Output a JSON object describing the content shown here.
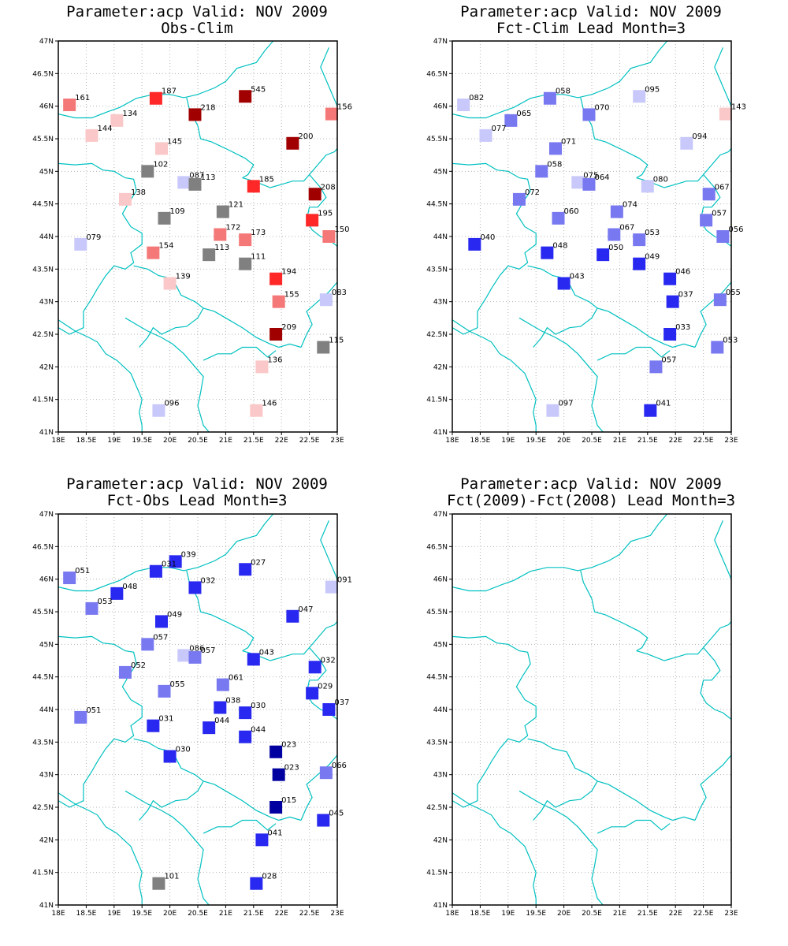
{
  "axis": {
    "lon_range": [
      18,
      23
    ],
    "lat_range": [
      41,
      47
    ],
    "lon_ticks": [
      "18E",
      "18.5E",
      "19E",
      "19.5E",
      "20E",
      "20.5E",
      "21E",
      "21.5E",
      "22E",
      "22.5E",
      "23E"
    ],
    "lat_ticks": [
      "41N",
      "41.5N",
      "42N",
      "42.5N",
      "43N",
      "43.5N",
      "44N",
      "44.5N",
      "45N",
      "45.5N",
      "46N",
      "46.5N",
      "47N"
    ],
    "grid": true,
    "grid_style": "dotted"
  },
  "colors": {
    "border_line": "#00c0c0",
    "grid_line": "#b4b4b4",
    "frame": "#000000",
    "dark_red": "#a00000",
    "red": "#ff2828",
    "light_red": "#f57878",
    "pale_red": "#fac8c8",
    "gray": "#808080",
    "pale_blue": "#c8c8fa",
    "light_blue": "#7878f0",
    "blue": "#2828f0",
    "dark_blue": "#0000a0"
  },
  "panels": [
    {
      "title_line1": "Parameter:acp Valid: NOV 2009",
      "title_line2": "Obs-Clim",
      "stations": [
        {
          "lon": 18.2,
          "lat": 46.02,
          "label": "161",
          "color": "light_red"
        },
        {
          "lon": 19.75,
          "lat": 46.12,
          "label": "187",
          "color": "red"
        },
        {
          "lon": 21.35,
          "lat": 46.15,
          "label": "545",
          "color": "dark_red"
        },
        {
          "lon": 22.9,
          "lat": 45.88,
          "label": "156",
          "color": "light_red"
        },
        {
          "lon": 19.05,
          "lat": 45.78,
          "label": "134",
          "color": "pale_red"
        },
        {
          "lon": 20.45,
          "lat": 45.87,
          "label": "218",
          "color": "dark_red"
        },
        {
          "lon": 18.6,
          "lat": 45.55,
          "label": "144",
          "color": "pale_red"
        },
        {
          "lon": 22.2,
          "lat": 45.43,
          "label": "200",
          "color": "dark_red"
        },
        {
          "lon": 19.85,
          "lat": 45.35,
          "label": "145",
          "color": "pale_red"
        },
        {
          "lon": 19.6,
          "lat": 45.0,
          "label": "102",
          "color": "gray"
        },
        {
          "lon": 20.25,
          "lat": 44.83,
          "label": "087",
          "color": "pale_blue"
        },
        {
          "lon": 20.45,
          "lat": 44.8,
          "label": "113",
          "color": "gray"
        },
        {
          "lon": 21.5,
          "lat": 44.77,
          "label": "185",
          "color": "red"
        },
        {
          "lon": 22.6,
          "lat": 44.65,
          "label": "208",
          "color": "dark_red"
        },
        {
          "lon": 19.2,
          "lat": 44.57,
          "label": "138",
          "color": "pale_red"
        },
        {
          "lon": 20.95,
          "lat": 44.38,
          "label": "121",
          "color": "gray"
        },
        {
          "lon": 19.9,
          "lat": 44.28,
          "label": "109",
          "color": "gray"
        },
        {
          "lon": 22.55,
          "lat": 44.25,
          "label": "195",
          "color": "red"
        },
        {
          "lon": 20.9,
          "lat": 44.03,
          "label": "172",
          "color": "light_red"
        },
        {
          "lon": 22.85,
          "lat": 44.0,
          "label": "150",
          "color": "light_red"
        },
        {
          "lon": 21.35,
          "lat": 43.95,
          "label": "173",
          "color": "light_red"
        },
        {
          "lon": 18.4,
          "lat": 43.88,
          "label": "079",
          "color": "pale_blue"
        },
        {
          "lon": 19.7,
          "lat": 43.75,
          "label": "154",
          "color": "light_red"
        },
        {
          "lon": 20.7,
          "lat": 43.72,
          "label": "113",
          "color": "gray"
        },
        {
          "lon": 21.35,
          "lat": 43.58,
          "label": "111",
          "color": "gray"
        },
        {
          "lon": 21.9,
          "lat": 43.35,
          "label": "194",
          "color": "red"
        },
        {
          "lon": 20.0,
          "lat": 43.28,
          "label": "139",
          "color": "pale_red"
        },
        {
          "lon": 21.95,
          "lat": 43.0,
          "label": "155",
          "color": "light_red"
        },
        {
          "lon": 22.8,
          "lat": 43.03,
          "label": "083",
          "color": "pale_blue"
        },
        {
          "lon": 21.9,
          "lat": 42.5,
          "label": "209",
          "color": "dark_red"
        },
        {
          "lon": 22.75,
          "lat": 42.3,
          "label": "115",
          "color": "gray"
        },
        {
          "lon": 21.65,
          "lat": 42.0,
          "label": "136",
          "color": "pale_red"
        },
        {
          "lon": 19.8,
          "lat": 41.33,
          "label": "096",
          "color": "pale_blue"
        },
        {
          "lon": 21.55,
          "lat": 41.33,
          "label": "146",
          "color": "pale_red"
        }
      ]
    },
    {
      "title_line1": "Parameter:acp Valid: NOV 2009",
      "title_line2": "Fct-Clim Lead Month=3",
      "stations": [
        {
          "lon": 18.2,
          "lat": 46.02,
          "label": "082",
          "color": "pale_blue"
        },
        {
          "lon": 19.75,
          "lat": 46.12,
          "label": "058",
          "color": "light_blue"
        },
        {
          "lon": 21.35,
          "lat": 46.15,
          "label": "095",
          "color": "pale_blue"
        },
        {
          "lon": 22.9,
          "lat": 45.88,
          "label": "143",
          "color": "pale_red"
        },
        {
          "lon": 19.05,
          "lat": 45.78,
          "label": "065",
          "color": "light_blue"
        },
        {
          "lon": 20.45,
          "lat": 45.87,
          "label": "070",
          "color": "light_blue"
        },
        {
          "lon": 18.6,
          "lat": 45.55,
          "label": "077",
          "color": "pale_blue"
        },
        {
          "lon": 22.2,
          "lat": 45.43,
          "label": "094",
          "color": "pale_blue"
        },
        {
          "lon": 19.85,
          "lat": 45.35,
          "label": "071",
          "color": "light_blue"
        },
        {
          "lon": 19.6,
          "lat": 45.0,
          "label": "058",
          "color": "light_blue"
        },
        {
          "lon": 20.25,
          "lat": 44.83,
          "label": "075",
          "color": "pale_blue"
        },
        {
          "lon": 20.45,
          "lat": 44.8,
          "label": "064",
          "color": "light_blue"
        },
        {
          "lon": 21.5,
          "lat": 44.77,
          "label": "080",
          "color": "pale_blue"
        },
        {
          "lon": 22.6,
          "lat": 44.65,
          "label": "067",
          "color": "light_blue"
        },
        {
          "lon": 19.2,
          "lat": 44.57,
          "label": "072",
          "color": "light_blue"
        },
        {
          "lon": 20.95,
          "lat": 44.38,
          "label": "074",
          "color": "light_blue"
        },
        {
          "lon": 19.9,
          "lat": 44.28,
          "label": "060",
          "color": "light_blue"
        },
        {
          "lon": 22.55,
          "lat": 44.25,
          "label": "057",
          "color": "light_blue"
        },
        {
          "lon": 20.9,
          "lat": 44.03,
          "label": "067",
          "color": "light_blue"
        },
        {
          "lon": 22.85,
          "lat": 44.0,
          "label": "056",
          "color": "light_blue"
        },
        {
          "lon": 21.35,
          "lat": 43.95,
          "label": "053",
          "color": "light_blue"
        },
        {
          "lon": 18.4,
          "lat": 43.88,
          "label": "040",
          "color": "blue"
        },
        {
          "lon": 19.7,
          "lat": 43.75,
          "label": "048",
          "color": "blue"
        },
        {
          "lon": 20.7,
          "lat": 43.72,
          "label": "050",
          "color": "blue"
        },
        {
          "lon": 21.35,
          "lat": 43.58,
          "label": "049",
          "color": "blue"
        },
        {
          "lon": 21.9,
          "lat": 43.35,
          "label": "046",
          "color": "blue"
        },
        {
          "lon": 20.0,
          "lat": 43.28,
          "label": "043",
          "color": "blue"
        },
        {
          "lon": 21.95,
          "lat": 43.0,
          "label": "037",
          "color": "blue"
        },
        {
          "lon": 22.8,
          "lat": 43.03,
          "label": "055",
          "color": "light_blue"
        },
        {
          "lon": 21.9,
          "lat": 42.5,
          "label": "033",
          "color": "blue"
        },
        {
          "lon": 22.75,
          "lat": 42.3,
          "label": "053",
          "color": "light_blue"
        },
        {
          "lon": 21.65,
          "lat": 42.0,
          "label": "057",
          "color": "light_blue"
        },
        {
          "lon": 19.8,
          "lat": 41.33,
          "label": "097",
          "color": "pale_blue"
        },
        {
          "lon": 21.55,
          "lat": 41.33,
          "label": "041",
          "color": "blue"
        }
      ]
    },
    {
      "title_line1": "Parameter:acp Valid: NOV 2009",
      "title_line2": "Fct-Obs Lead Month=3",
      "stations": [
        {
          "lon": 20.1,
          "lat": 46.27,
          "label": "039",
          "color": "blue"
        },
        {
          "lon": 18.2,
          "lat": 46.02,
          "label": "051",
          "color": "light_blue"
        },
        {
          "lon": 19.75,
          "lat": 46.12,
          "label": "031",
          "color": "blue"
        },
        {
          "lon": 21.35,
          "lat": 46.15,
          "label": "027",
          "color": "blue"
        },
        {
          "lon": 22.9,
          "lat": 45.88,
          "label": "091",
          "color": "pale_blue"
        },
        {
          "lon": 19.05,
          "lat": 45.78,
          "label": "048",
          "color": "blue"
        },
        {
          "lon": 20.45,
          "lat": 45.87,
          "label": "032",
          "color": "blue"
        },
        {
          "lon": 18.6,
          "lat": 45.55,
          "label": "053",
          "color": "light_blue"
        },
        {
          "lon": 22.2,
          "lat": 45.43,
          "label": "047",
          "color": "blue"
        },
        {
          "lon": 19.85,
          "lat": 45.35,
          "label": "049",
          "color": "blue"
        },
        {
          "lon": 19.6,
          "lat": 45.0,
          "label": "057",
          "color": "light_blue"
        },
        {
          "lon": 20.25,
          "lat": 44.83,
          "label": "086",
          "color": "pale_blue"
        },
        {
          "lon": 20.45,
          "lat": 44.8,
          "label": "057",
          "color": "light_blue"
        },
        {
          "lon": 21.5,
          "lat": 44.77,
          "label": "043",
          "color": "blue"
        },
        {
          "lon": 22.6,
          "lat": 44.65,
          "label": "032",
          "color": "blue"
        },
        {
          "lon": 19.2,
          "lat": 44.57,
          "label": "052",
          "color": "light_blue"
        },
        {
          "lon": 20.95,
          "lat": 44.38,
          "label": "061",
          "color": "light_blue"
        },
        {
          "lon": 19.9,
          "lat": 44.28,
          "label": "055",
          "color": "light_blue"
        },
        {
          "lon": 22.55,
          "lat": 44.25,
          "label": "029",
          "color": "blue"
        },
        {
          "lon": 20.9,
          "lat": 44.03,
          "label": "038",
          "color": "blue"
        },
        {
          "lon": 22.85,
          "lat": 44.0,
          "label": "037",
          "color": "blue"
        },
        {
          "lon": 21.35,
          "lat": 43.95,
          "label": "030",
          "color": "blue"
        },
        {
          "lon": 18.4,
          "lat": 43.88,
          "label": "051",
          "color": "light_blue"
        },
        {
          "lon": 19.7,
          "lat": 43.75,
          "label": "031",
          "color": "blue"
        },
        {
          "lon": 20.7,
          "lat": 43.72,
          "label": "044",
          "color": "blue"
        },
        {
          "lon": 21.35,
          "lat": 43.58,
          "label": "044",
          "color": "blue"
        },
        {
          "lon": 21.9,
          "lat": 43.35,
          "label": "023",
          "color": "dark_blue"
        },
        {
          "lon": 20.0,
          "lat": 43.28,
          "label": "030",
          "color": "blue"
        },
        {
          "lon": 21.95,
          "lat": 43.0,
          "label": "023",
          "color": "dark_blue"
        },
        {
          "lon": 22.8,
          "lat": 43.03,
          "label": "066",
          "color": "light_blue"
        },
        {
          "lon": 21.9,
          "lat": 42.5,
          "label": "015",
          "color": "dark_blue"
        },
        {
          "lon": 22.75,
          "lat": 42.3,
          "label": "045",
          "color": "blue"
        },
        {
          "lon": 21.65,
          "lat": 42.0,
          "label": "041",
          "color": "blue"
        },
        {
          "lon": 19.8,
          "lat": 41.33,
          "label": "101",
          "color": "gray"
        },
        {
          "lon": 21.55,
          "lat": 41.33,
          "label": "028",
          "color": "blue"
        }
      ]
    },
    {
      "title_line1": "Parameter:acp Valid: NOV 2009",
      "title_line2": "Fct(2009)-Fct(2008) Lead Month=3",
      "stations": []
    }
  ]
}
